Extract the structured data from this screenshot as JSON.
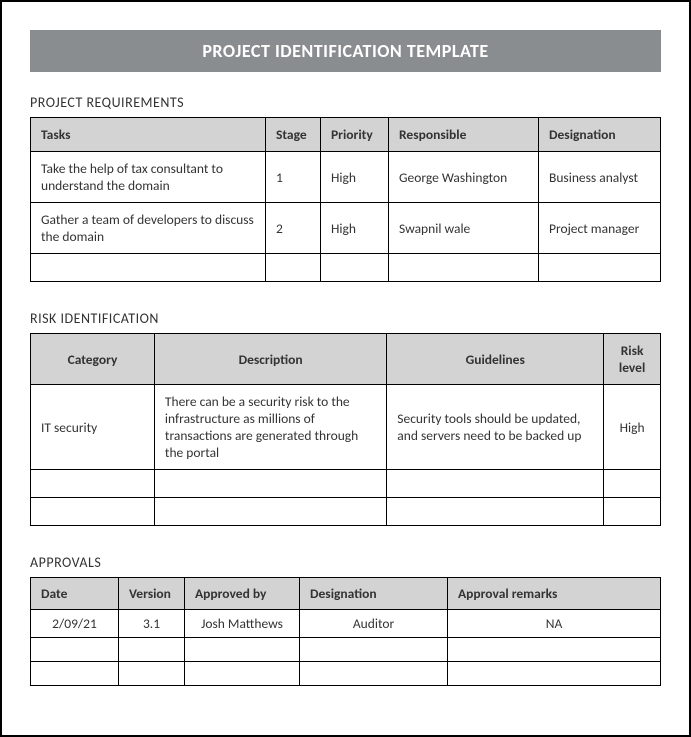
{
  "title": "PROJECT IDENTIFICATION TEMPLATE",
  "colors": {
    "banner_bg": "#8a8d90",
    "banner_text": "#ffffff",
    "header_bg": "#d3d3d3",
    "border": "#000000",
    "text": "#333333",
    "page_bg": "#ffffff"
  },
  "sections": {
    "requirements": {
      "heading": "PROJECT REQUIREMENTS",
      "columns": [
        "Tasks",
        "Stage",
        "Priority",
        "Responsible",
        "Designation"
      ],
      "rows": [
        [
          "Take the help of tax consultant to understand the domain",
          "1",
          "High",
          "George Washington",
          "Business analyst"
        ],
        [
          "Gather a team of developers to discuss the domain",
          "2",
          "High",
          "Swapnil wale",
          "Project manager"
        ],
        [
          "",
          "",
          "",
          "",
          ""
        ]
      ]
    },
    "risk": {
      "heading": "RISK IDENTIFICATION",
      "columns": [
        "Category",
        "Description",
        "Guidelines",
        "Risk level"
      ],
      "rows": [
        [
          "IT security",
          "There can be a security risk to the infrastructure as millions of transactions are generated through the portal",
          "Security tools should be updated, and servers need to be backed up",
          "High"
        ],
        [
          "",
          "",
          "",
          ""
        ],
        [
          "",
          "",
          "",
          ""
        ]
      ]
    },
    "approvals": {
      "heading": "APPROVALS",
      "columns": [
        "Date",
        "Version",
        "Approved by",
        "Designation",
        "Approval remarks"
      ],
      "rows": [
        [
          "2/09/21",
          "3.1",
          "Josh Matthews",
          "Auditor",
          "NA"
        ],
        [
          "",
          "",
          "",
          "",
          ""
        ],
        [
          "",
          "",
          "",
          "",
          ""
        ]
      ]
    }
  }
}
